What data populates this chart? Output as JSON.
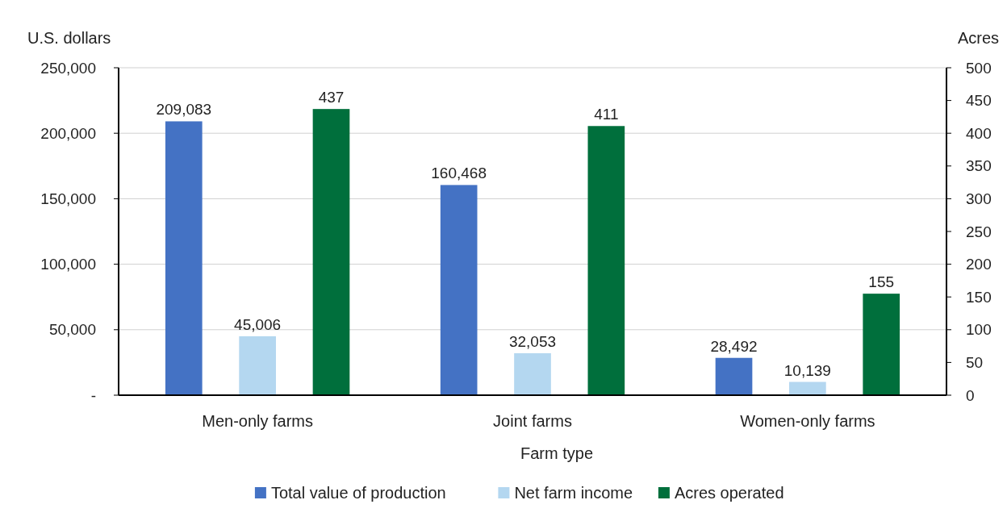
{
  "chart_data": {
    "type": "bar",
    "xlabel": "Farm type",
    "ylabel": "U.S. dollars",
    "y2label": "Acres",
    "categories": [
      "Men-only farms",
      "Joint farms",
      "Women-only farms"
    ],
    "series": [
      {
        "name": "Total value of production",
        "color": "#4472c4",
        "values": [
          209083,
          160468,
          28492
        ],
        "value_labels": [
          "209,083",
          "160,468",
          "28,492"
        ]
      },
      {
        "name": "Net farm income",
        "color": "#b4d7f0",
        "values": [
          45006,
          32053,
          10139
        ],
        "value_labels": [
          "45,006",
          "32,053",
          "10,139"
        ]
      },
      {
        "name": "Acres operated",
        "color": "#006f3c",
        "values": [
          437,
          411,
          155
        ],
        "axis": "y2",
        "value_labels": [
          "437",
          "411",
          "155"
        ]
      }
    ],
    "ylim": [
      0,
      250000
    ],
    "yticks": [
      {
        "value": 0,
        "label": "-"
      },
      {
        "value": 50000,
        "label": "50,000"
      },
      {
        "value": 100000,
        "label": "100,000"
      },
      {
        "value": 150000,
        "label": "150,000"
      },
      {
        "value": 200000,
        "label": "200,000"
      },
      {
        "value": 250000,
        "label": "250,000"
      }
    ],
    "y2lim": [
      0,
      500
    ],
    "y2ticks": [
      0,
      50,
      100,
      150,
      200,
      250,
      300,
      350,
      400,
      450,
      500
    ],
    "grid": "y",
    "legend": "bottom"
  }
}
